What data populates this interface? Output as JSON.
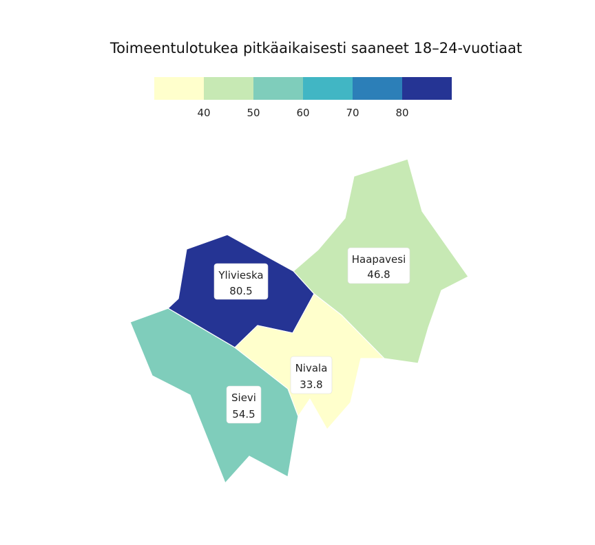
{
  "title": "Toimeentulotukea pitkäaikaisesti saaneet 18–24-vuotiaat",
  "legend": {
    "colors": [
      "#ffffcc",
      "#c7e9b4",
      "#7fcdbb",
      "#41b6c4",
      "#2c7fb8",
      "#253494"
    ],
    "ticks": [
      "40",
      "50",
      "60",
      "70",
      "80"
    ]
  },
  "chart_data": {
    "type": "choropleth",
    "title": "Toimeentulotukea pitkäaikaisesti saaneet 18–24-vuotiaat",
    "bins": [
      40,
      50,
      60,
      70,
      80
    ],
    "colors": [
      "#ffffcc",
      "#c7e9b4",
      "#7fcdbb",
      "#41b6c4",
      "#2c7fb8",
      "#253494"
    ],
    "regions": [
      {
        "name": "Haapavesi",
        "value": 46.8,
        "value_label": "46.8",
        "color": "#c7e9b4"
      },
      {
        "name": "Ylivieska",
        "value": 80.5,
        "value_label": "80.5",
        "color": "#253494"
      },
      {
        "name": "Nivala",
        "value": 33.8,
        "value_label": "33.8",
        "color": "#ffffcc"
      },
      {
        "name": "Sievi",
        "value": 54.5,
        "value_label": "54.5",
        "color": "#7fcdbb"
      }
    ]
  }
}
